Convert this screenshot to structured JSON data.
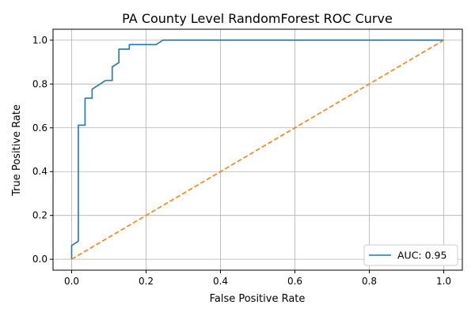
{
  "chart_data": {
    "type": "line",
    "title": "PA County Level RandomForest ROC Curve",
    "xlabel": "False Positive Rate",
    "ylabel": "True Positive Rate",
    "xlim": [
      -0.05,
      1.05
    ],
    "ylim": [
      -0.05,
      1.05
    ],
    "xticks": [
      "0.0",
      "0.2",
      "0.4",
      "0.6",
      "0.8",
      "1.0"
    ],
    "yticks": [
      "0.0",
      "0.2",
      "0.4",
      "0.6",
      "0.8",
      "1.0"
    ],
    "grid": true,
    "legend_position": "bottom-right",
    "series": [
      {
        "name": "AUC: 0.95",
        "color": "#1f77b4",
        "style": "solid",
        "x": [
          0.0,
          0.0,
          0.018,
          0.018,
          0.036,
          0.036,
          0.055,
          0.055,
          0.091,
          0.091,
          0.109,
          0.109,
          0.127,
          0.127,
          0.145,
          0.145,
          0.155,
          0.155,
          0.227,
          0.227,
          0.245,
          0.245,
          1.0
        ],
        "y": [
          0.0,
          0.063,
          0.082,
          0.612,
          0.612,
          0.735,
          0.735,
          0.776,
          0.816,
          0.816,
          0.816,
          0.878,
          0.898,
          0.959,
          0.959,
          0.959,
          0.959,
          0.98,
          0.98,
          0.98,
          1.0,
          1.0,
          1.0
        ]
      },
      {
        "name": "",
        "color": "#ff7f0e",
        "style": "dashed",
        "x": [
          0.0,
          1.0
        ],
        "y": [
          0.0,
          1.0
        ]
      }
    ]
  }
}
